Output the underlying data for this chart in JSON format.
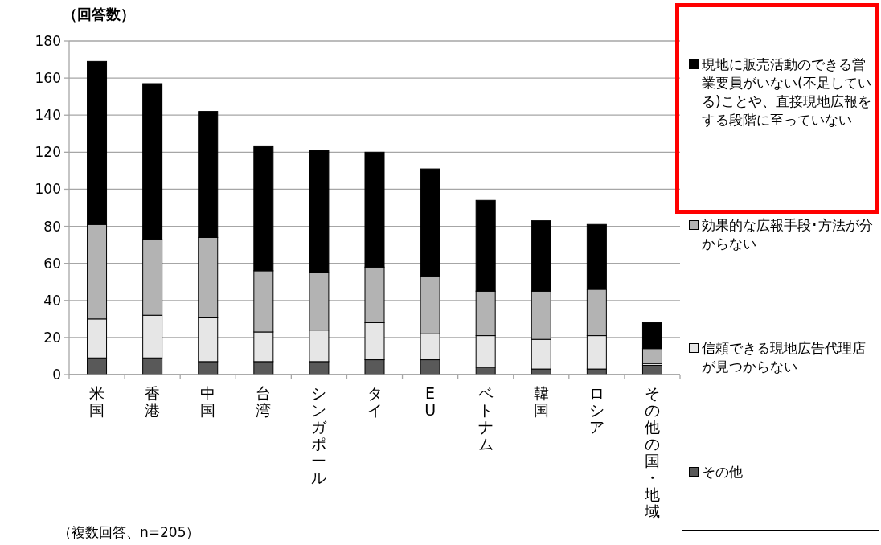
{
  "chart_data": {
    "type": "bar",
    "stacked": true,
    "ylabel": "（回答数）",
    "categories": [
      "米国",
      "香港",
      "中国",
      "台湾",
      "シンガポール",
      "タイ",
      "EU",
      "ベトナム",
      "韓国",
      "ロシア",
      "その他の国・地域"
    ],
    "series": [
      {
        "name": "その他",
        "color": "#595959",
        "values": [
          9,
          9,
          7,
          7,
          7,
          8,
          8,
          4,
          3,
          3,
          5
        ]
      },
      {
        "name": "信頼できる現地広告代理店が見つからない",
        "color": "#e6e6e6",
        "values": [
          21,
          23,
          24,
          16,
          17,
          20,
          14,
          17,
          16,
          18,
          1
        ]
      },
      {
        "name": "効果的な広報手段･方法が分からない",
        "color": "#b3b3b3",
        "values": [
          51,
          41,
          43,
          33,
          31,
          30,
          31,
          24,
          26,
          25,
          8
        ]
      },
      {
        "name": "現地に販売活動のできる営業要員がいない(不足している)ことや、直接現地広報をする段階に至っていない",
        "color": "#000000",
        "values": [
          88,
          84,
          68,
          67,
          66,
          62,
          58,
          49,
          38,
          35,
          14
        ]
      }
    ],
    "ylim": [
      0,
      180
    ],
    "yticks": [
      0,
      20,
      40,
      60,
      80,
      100,
      120,
      140,
      160,
      180
    ],
    "grid": "y",
    "legend": "right",
    "annotations": [
      "（複数回答、n=205）"
    ]
  }
}
